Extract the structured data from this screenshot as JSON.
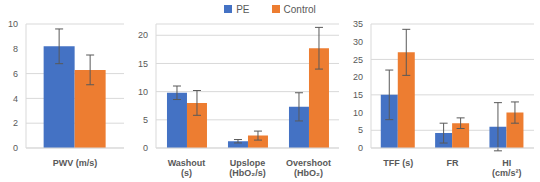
{
  "chart_data": [
    {
      "type": "bar",
      "categories": [
        "PWV (m/s)"
      ],
      "legend": "top",
      "grid": true,
      "ylim": [
        0,
        10
      ],
      "yticks": [
        0,
        2,
        4,
        6,
        8,
        10
      ],
      "series": [
        {
          "name": "PE",
          "color": "#4472c4",
          "values": [
            8.2
          ],
          "errors": [
            1.4
          ]
        },
        {
          "name": "Control",
          "color": "#ed7d31",
          "values": [
            6.3
          ],
          "errors": [
            1.2
          ]
        }
      ]
    },
    {
      "type": "bar",
      "categories": [
        "Washout (s)",
        "Upslope (HbO₂/s)",
        "Overshoot (HbO₂)"
      ],
      "legend": "top",
      "grid": true,
      "ylim": [
        0,
        22
      ],
      "yticks": [
        0,
        5,
        10,
        15,
        20
      ],
      "series": [
        {
          "name": "PE",
          "color": "#4472c4",
          "values": [
            9.8,
            1.2,
            7.3
          ],
          "errors": [
            1.2,
            0.3,
            2.5
          ]
        },
        {
          "name": "Control",
          "color": "#ed7d31",
          "values": [
            8.0,
            2.2,
            17.7
          ],
          "errors": [
            2.2,
            0.8,
            3.7
          ]
        }
      ]
    },
    {
      "type": "bar",
      "categories": [
        "TFF (s)",
        "FR",
        "HI (cm/s²)"
      ],
      "legend": "top",
      "grid": true,
      "ylim": [
        0,
        35
      ],
      "yticks": [
        0,
        5,
        10,
        15,
        20,
        25,
        30,
        35
      ],
      "series": [
        {
          "name": "PE",
          "color": "#4472c4",
          "values": [
            15,
            4.2,
            6
          ],
          "errors": [
            7,
            2.8,
            6.8
          ]
        },
        {
          "name": "Control",
          "color": "#ed7d31",
          "values": [
            27,
            7,
            10
          ],
          "errors": [
            6.5,
            1.5,
            3
          ]
        }
      ]
    }
  ]
}
